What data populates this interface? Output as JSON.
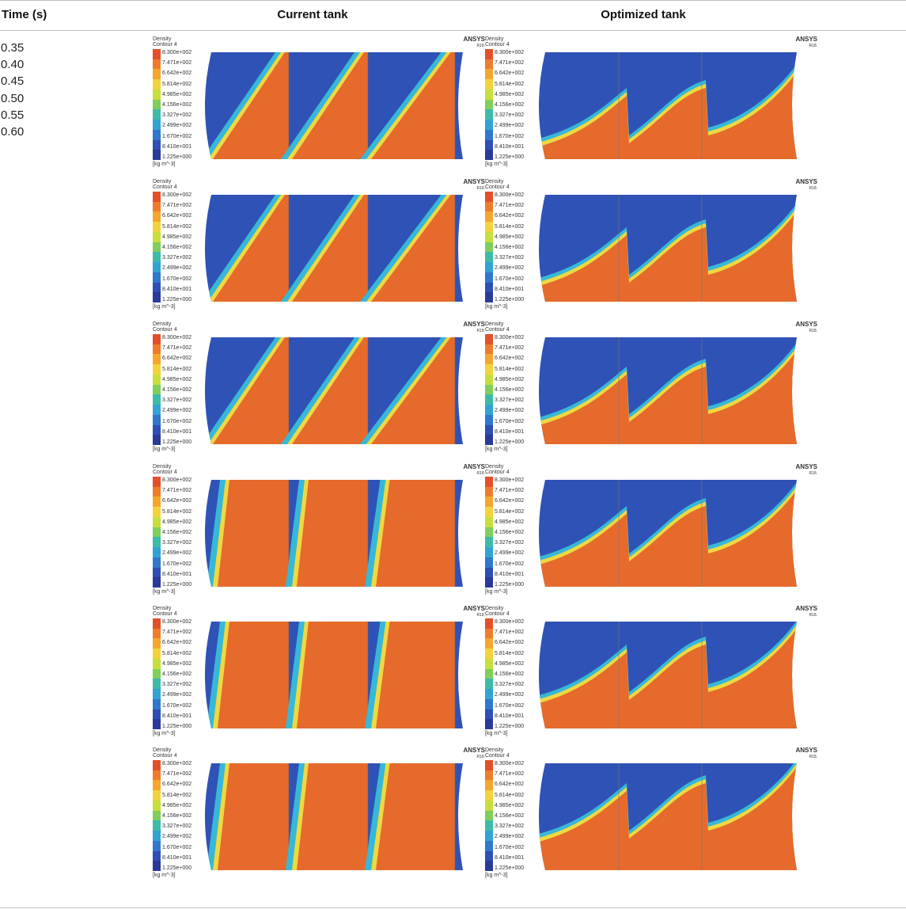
{
  "headers": {
    "time": "Time (s)",
    "current": "Current tank",
    "optimized": "Optimized tank"
  },
  "times": [
    "0.35",
    "0.40",
    "0.45",
    "0.50",
    "0.55",
    "0.60"
  ],
  "legend": {
    "variable": "Density",
    "contour": "Contour 4",
    "ticks": [
      "8.300e+002",
      "7.471e+002",
      "6.642e+002",
      "5.814e+002",
      "4.985e+002",
      "4.156e+002",
      "3.327e+002",
      "2.499e+002",
      "1.670e+002",
      "8.410e+001",
      "1.225e+000"
    ],
    "units": "[kg m^-3]",
    "colors": [
      "#e2502a",
      "#ee7c2c",
      "#f5a62e",
      "#f3d33a",
      "#c8de3c",
      "#7fcf5a",
      "#3cbca8",
      "#33a3d3",
      "#2f78cc",
      "#2e4fb5",
      "#2a3a9a"
    ]
  },
  "ansys": {
    "brand": "ANSYS",
    "version": "R18."
  },
  "colors": {
    "liquid": "#e56a2c",
    "liquid_dark": "#d94b2a",
    "air": "#2f52b6",
    "interface_yellow": "#f0d840",
    "interface_cyan": "#38b8d6"
  }
}
